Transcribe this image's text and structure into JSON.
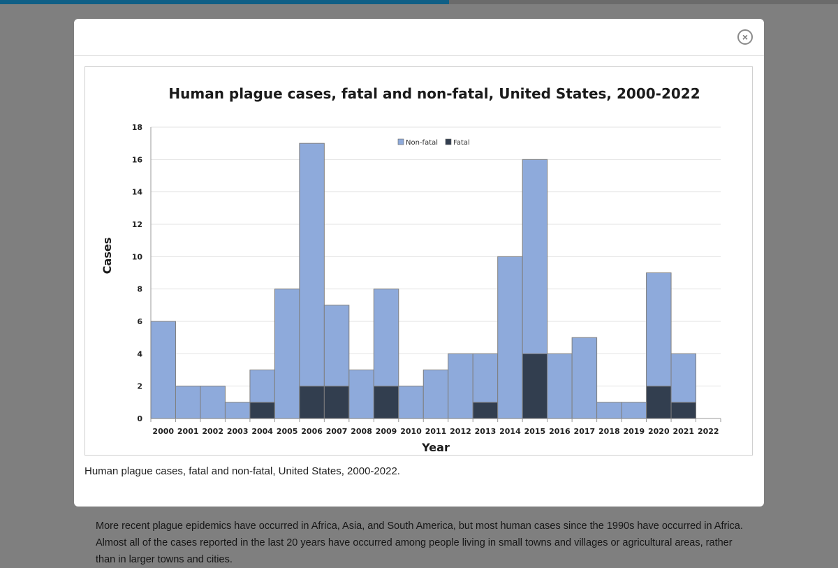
{
  "modal": {
    "close_label": "×",
    "caption": "Human plague cases, fatal and non-fatal, United States, 2000-2022."
  },
  "background_paragraph": "More recent plague epidemics have occurred in Africa, Asia, and South America, but most human cases since the 1990s have occurred in Africa. Almost all of the cases reported in the last 20 years have occurred among people living in small towns and villages or agricultural areas, rather than in larger towns and cities.",
  "colors": {
    "non_fatal": "#8eaadb",
    "fatal": "#323e4f",
    "bar_border": "#7f7f7f"
  },
  "chart_data": {
    "type": "bar",
    "stacked": true,
    "title": "Human plague cases, fatal and non-fatal, United States, 2000-2022",
    "xlabel": "Year",
    "ylabel": "Cases",
    "ylim": [
      0,
      18
    ],
    "yticks": [
      0,
      2,
      4,
      6,
      8,
      10,
      12,
      14,
      16,
      18
    ],
    "grid": true,
    "legend_position": "top-center",
    "categories": [
      "2000",
      "2001",
      "2002",
      "2003",
      "2004",
      "2005",
      "2006",
      "2007",
      "2008",
      "2009",
      "2010",
      "2011",
      "2012",
      "2013",
      "2014",
      "2015",
      "2016",
      "2017",
      "2018",
      "2019",
      "2020",
      "2021",
      "2022"
    ],
    "series": [
      {
        "name": "Non-fatal",
        "values": [
          6,
          2,
          2,
          1,
          2,
          8,
          15,
          5,
          3,
          6,
          2,
          3,
          4,
          3,
          10,
          12,
          4,
          5,
          1,
          1,
          7,
          3,
          0
        ]
      },
      {
        "name": "Fatal",
        "values": [
          0,
          0,
          0,
          0,
          1,
          0,
          2,
          2,
          0,
          2,
          0,
          0,
          0,
          1,
          0,
          4,
          0,
          0,
          0,
          0,
          2,
          1,
          0
        ]
      }
    ]
  }
}
